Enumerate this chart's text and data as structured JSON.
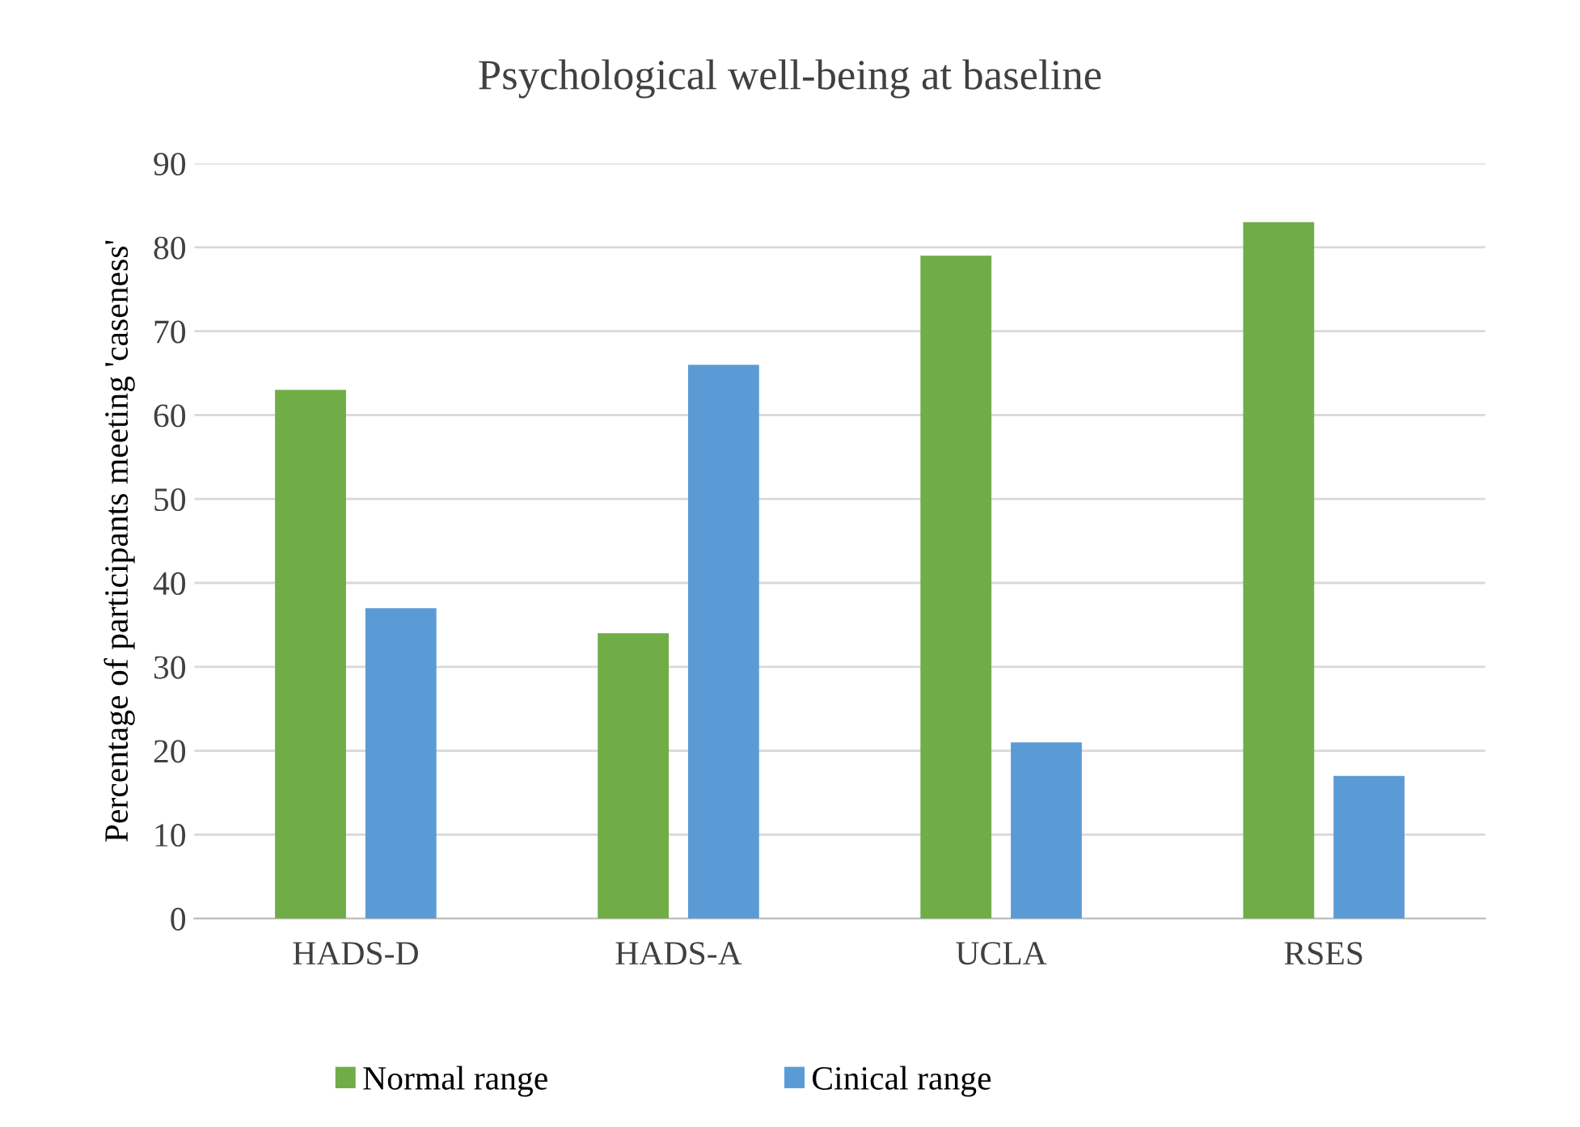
{
  "chart_data": {
    "type": "bar",
    "title": "Psychological well-being at baseline",
    "ylabel": "Percentage of participants meeting 'caseness'",
    "categories": [
      "HADS-D",
      "HADS-A",
      "UCLA",
      "RSES"
    ],
    "series": [
      {
        "name": "Normal range",
        "color": "#70ad47",
        "values": [
          63,
          34,
          79,
          83
        ]
      },
      {
        "name": "Cinical range",
        "color": "#5b9bd5",
        "values": [
          37,
          66,
          21,
          17
        ]
      }
    ],
    "ylim": [
      0,
      90
    ],
    "yticks": [
      0,
      10,
      20,
      30,
      40,
      50,
      60,
      70,
      80,
      90
    ],
    "grid": "y",
    "legend": "bottom"
  }
}
